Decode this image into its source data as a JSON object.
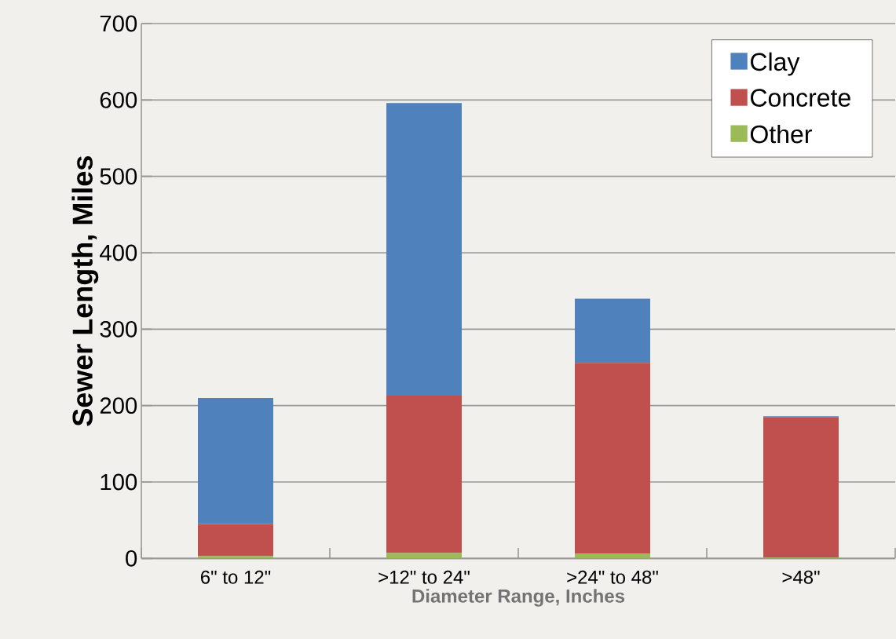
{
  "chart_data": {
    "type": "bar",
    "stacked": true,
    "xlabel": "Diameter Range, Inches",
    "ylabel": "Sewer Length, Miles",
    "categories": [
      "6\" to 12\"",
      ">12\" to 24\"",
      ">24\" to 48\"",
      ">48\""
    ],
    "series": [
      {
        "name": "Other",
        "color": "#9bbb59",
        "values": [
          3,
          7,
          6,
          1
        ]
      },
      {
        "name": "Concrete",
        "color": "#c0504d",
        "values": [
          42,
          206,
          250,
          184
        ]
      },
      {
        "name": "Clay",
        "color": "#4f81bd",
        "values": [
          165,
          383,
          84,
          1
        ]
      }
    ],
    "ylim": [
      0,
      700
    ],
    "yticks": [
      0,
      100,
      200,
      300,
      400,
      500,
      600,
      700
    ],
    "grid": "y",
    "legend": "top right"
  }
}
